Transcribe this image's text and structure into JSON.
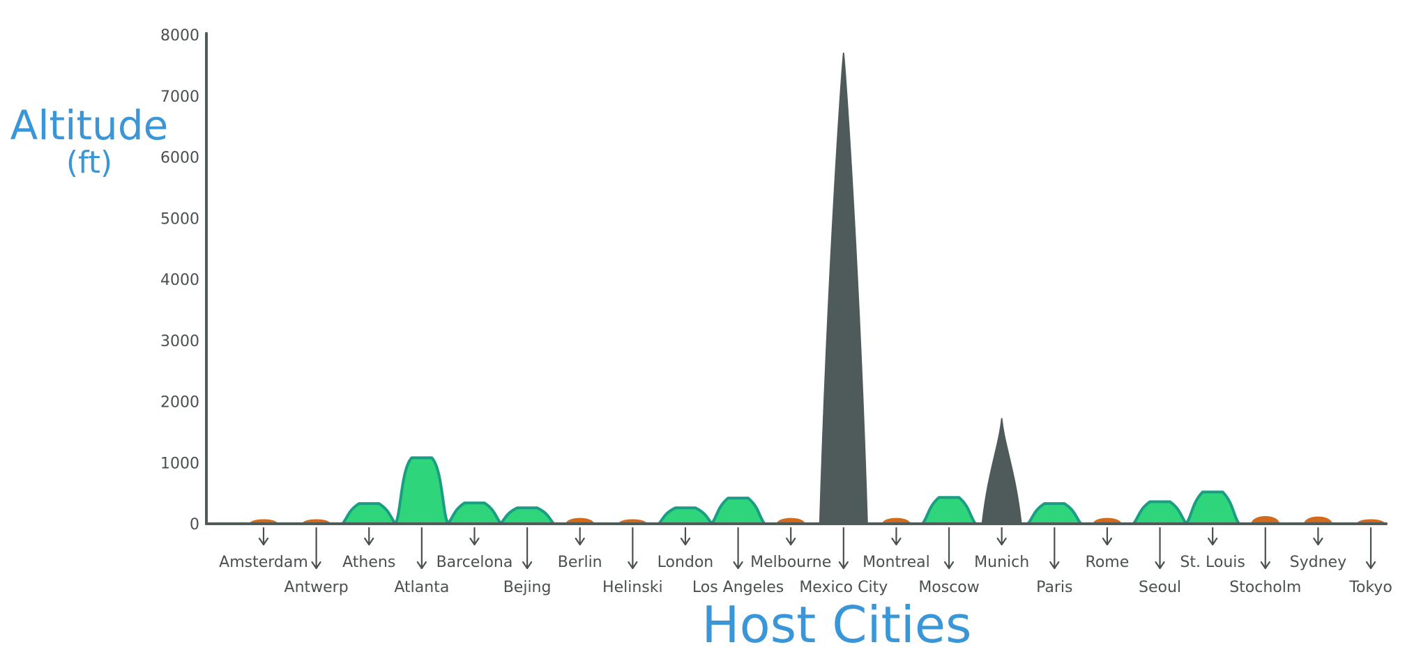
{
  "chart_data": {
    "type": "area",
    "ylabel_line1": "Altitude",
    "ylabel_line2": "(ft)",
    "xlabel": "Host Cities",
    "ylim": [
      0,
      8000
    ],
    "yticks": [
      0,
      1000,
      2000,
      3000,
      4000,
      5000,
      6000,
      7000,
      8000
    ],
    "colors": {
      "low": "#d26a1e",
      "mid": "#2ed57a",
      "mid_outline": "#1a9e83",
      "high": "#4f5a5a",
      "axis": "#4f5a5a",
      "title": "#3a96d6"
    },
    "cities": [
      {
        "name": "Amsterdam",
        "altitude": 40,
        "tier": "low"
      },
      {
        "name": "Antwerp",
        "altitude": 30,
        "tier": "low"
      },
      {
        "name": "Athens",
        "altitude": 330,
        "tier": "mid"
      },
      {
        "name": "Atlanta",
        "altitude": 1080,
        "tier": "mid"
      },
      {
        "name": "Barcelona",
        "altitude": 340,
        "tier": "mid"
      },
      {
        "name": "Bejing",
        "altitude": 260,
        "tier": "mid"
      },
      {
        "name": "Berlin",
        "altitude": 120,
        "tier": "low"
      },
      {
        "name": "Helinski",
        "altitude": 60,
        "tier": "low"
      },
      {
        "name": "London",
        "altitude": 260,
        "tier": "mid"
      },
      {
        "name": "Los Angeles",
        "altitude": 420,
        "tier": "mid"
      },
      {
        "name": "Melbourne",
        "altitude": 120,
        "tier": "low"
      },
      {
        "name": "Mexico City",
        "altitude": 7700,
        "tier": "high"
      },
      {
        "name": "Montreal",
        "altitude": 120,
        "tier": "low"
      },
      {
        "name": "Moscow",
        "altitude": 430,
        "tier": "mid"
      },
      {
        "name": "Munich",
        "altitude": 1720,
        "tier": "high"
      },
      {
        "name": "Paris",
        "altitude": 330,
        "tier": "mid"
      },
      {
        "name": "Rome",
        "altitude": 120,
        "tier": "low"
      },
      {
        "name": "Seoul",
        "altitude": 360,
        "tier": "mid"
      },
      {
        "name": "St. Louis",
        "altitude": 520,
        "tier": "mid"
      },
      {
        "name": "Stocholm",
        "altitude": 160,
        "tier": "low"
      },
      {
        "name": "Sydney",
        "altitude": 150,
        "tier": "low"
      },
      {
        "name": "Tokyo",
        "altitude": 90,
        "tier": "low"
      }
    ]
  }
}
